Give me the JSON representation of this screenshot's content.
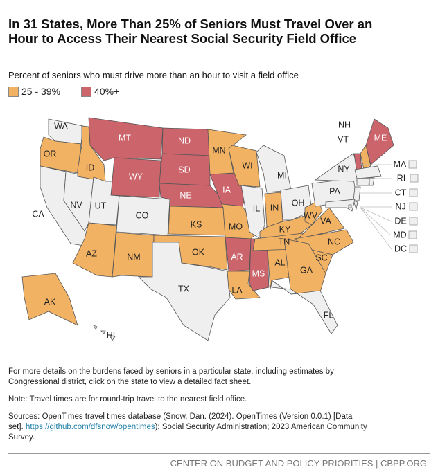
{
  "title": "In 31 States, More Than 25% of Seniors Must Travel Over an Hour to Access Their Nearest Social Security Field Office",
  "subtitle": "Percent of seniors who must drive more than an hour to visit a field office",
  "legend": [
    {
      "label": "25 - 39%",
      "color": "#f2b264"
    },
    {
      "label": "40%+",
      "color": "#cc646b"
    }
  ],
  "colors": {
    "none": "#efefef",
    "mid": "#f2b264",
    "high": "#cc646b"
  },
  "states": {
    "WA": "none",
    "OR": "mid",
    "CA": "none",
    "NV": "none",
    "ID": "mid",
    "MT": "high",
    "WY": "high",
    "UT": "none",
    "CO": "none",
    "AZ": "mid",
    "NM": "mid",
    "ND": "high",
    "SD": "high",
    "NE": "high",
    "KS": "mid",
    "OK": "mid",
    "TX": "none",
    "MN": "mid",
    "IA": "high",
    "WI": "mid",
    "MO": "mid",
    "AR": "high",
    "LA": "mid",
    "MS": "high",
    "AL": "mid",
    "IL": "none",
    "MI": "none",
    "IN": "mid",
    "OH": "none",
    "KY": "mid",
    "TN": "mid",
    "WV": "mid",
    "VA": "mid",
    "NC": "mid",
    "SC": "mid",
    "GA": "mid",
    "FL": "none",
    "PA": "none",
    "NY": "none",
    "VT": "high",
    "NH": "mid",
    "ME": "high",
    "MA": "none",
    "CT": "none",
    "RI": "none",
    "NJ": "none",
    "DE": "none",
    "MD": "none",
    "DC": "none",
    "AK": "mid",
    "HI": "none"
  },
  "notes": {
    "details": "For more details on the burdens faced by seniors in a particular state, including estimates by Congressional district, click on the state to view a detailed fact sheet.",
    "note": "Note: Travel times are for round-trip travel to the nearest field office.",
    "sources_pre": "Sources: OpenTimes travel times database (Snow, Dan. (2024). OpenTimes (Version 0.0.1) [Data set]. ",
    "sources_link": "https://github.com/dfsnow/opentimes",
    "sources_post": "); Social Security Administration; 2023 American Community Survey."
  },
  "footer": "CENTER ON BUDGET AND POLICY PRIORITIES | CBPP.ORG"
}
